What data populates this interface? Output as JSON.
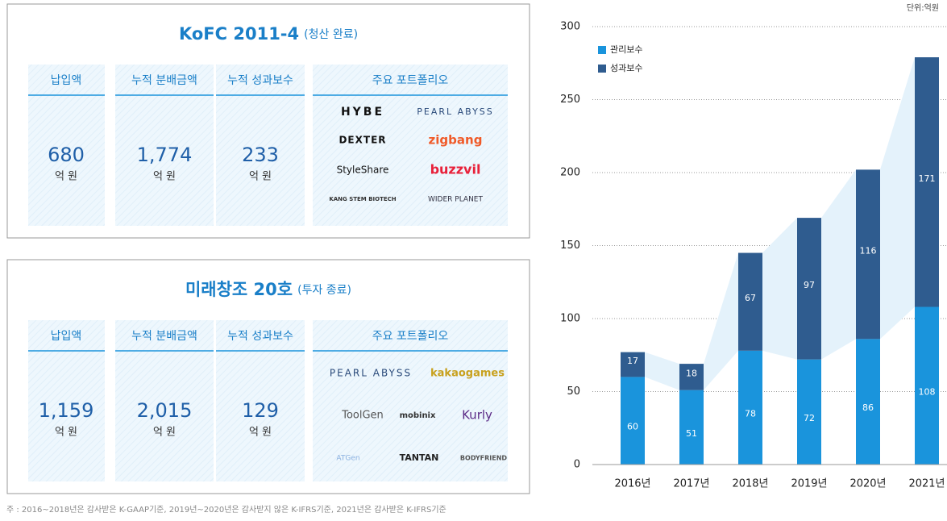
{
  "funds": [
    {
      "title": "KoFC 2011-4",
      "status": "(청산 완료)",
      "metrics": [
        {
          "label": "납입액",
          "value": "680",
          "unit": "억 원"
        },
        {
          "label": "누적 분배금액",
          "value": "1,774",
          "unit": "억 원"
        },
        {
          "label": "누적 성과보수",
          "value": "233",
          "unit": "억 원"
        }
      ],
      "portfolio_label": "주요 포트폴리오",
      "portfolio": [
        "HYBE",
        "PEARL ABYSS",
        "DEXTER",
        "zigbang",
        "StyleShare",
        "buzzvil",
        "KANG STEM BIOTECH",
        "WIDER PLANET"
      ]
    },
    {
      "title": "미래창조 20호",
      "status": "(투자 종료)",
      "metrics": [
        {
          "label": "납입액",
          "value": "1,159",
          "unit": "억 원"
        },
        {
          "label": "누적 분배금액",
          "value": "2,015",
          "unit": "억 원"
        },
        {
          "label": "누적 성과보수",
          "value": "129",
          "unit": "억 원"
        }
      ],
      "portfolio_label": "주요 포트폴리오",
      "portfolio": [
        "PEARL ABYSS",
        "kakaogames",
        "ToolGen",
        "mobinix",
        "Kurly",
        "ATGen",
        "TANTAN",
        "BODYFRIEND"
      ]
    }
  ],
  "footnote": "주 : 2016~2018년은 감사받은 K-GAAP기준, 2019년~2020년은 감사받지 않은 K-IFRS기준, 2021년은 감사받은 K-IFRS기준",
  "chart_data": {
    "type": "bar",
    "stacked": true,
    "unit": "단위:억원",
    "categories": [
      "2016년",
      "2017년",
      "2018년",
      "2019년",
      "2020년",
      "2021년"
    ],
    "series": [
      {
        "name": "관리보수",
        "color": "#1a94dc",
        "values": [
          60,
          51,
          78,
          72,
          86,
          108
        ]
      },
      {
        "name": "성과보수",
        "color": "#2f5c8f",
        "values": [
          17,
          18,
          67,
          97,
          116,
          171
        ]
      }
    ],
    "ylim": [
      0,
      300
    ],
    "yticks": [
      0,
      50,
      100,
      150,
      200,
      250,
      300
    ],
    "grid": true
  }
}
